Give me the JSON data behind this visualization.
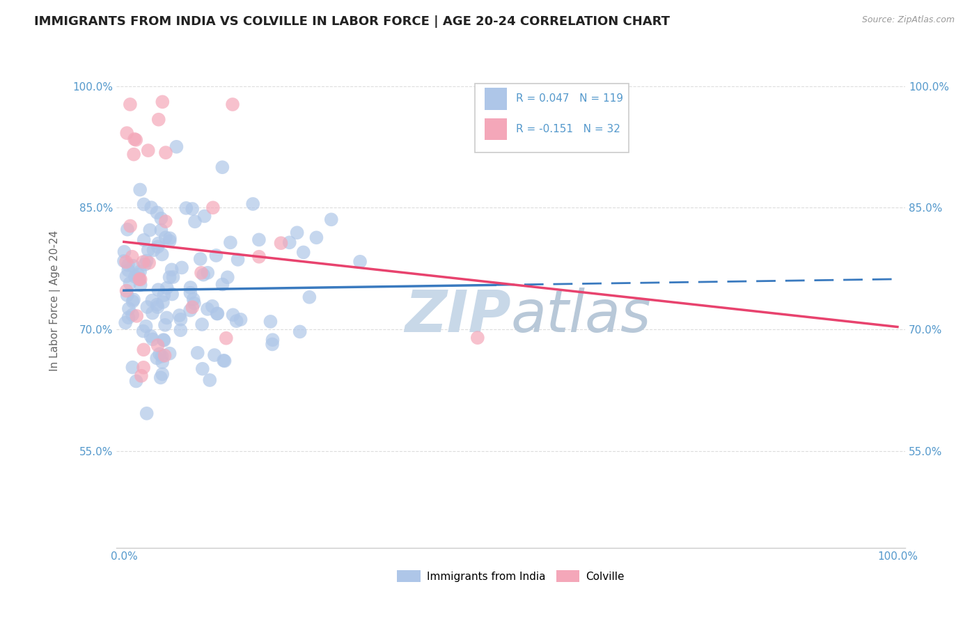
{
  "title": "IMMIGRANTS FROM INDIA VS COLVILLE IN LABOR FORCE | AGE 20-24 CORRELATION CHART",
  "source_text": "Source: ZipAtlas.com",
  "ylabel": "In Labor Force | Age 20-24",
  "xlim": [
    -0.01,
    1.01
  ],
  "ylim": [
    0.43,
    1.04
  ],
  "yticks": [
    0.55,
    0.7,
    0.85,
    1.0
  ],
  "ytick_labels": [
    "55.0%",
    "70.0%",
    "85.0%",
    "100.0%"
  ],
  "xticks": [
    0.0,
    1.0
  ],
  "xtick_labels": [
    "0.0%",
    "100.0%"
  ],
  "legend_R1": "R = 0.047",
  "legend_N1": "N = 119",
  "legend_R2": "R = -0.151",
  "legend_N2": "N = 32",
  "series1_color": "#aec6e8",
  "series2_color": "#f4a7b9",
  "trend1_color": "#3a7abf",
  "trend2_color": "#e8436e",
  "tick_color": "#5599cc",
  "watermark_color": "#c8d8e8",
  "background_color": "#ffffff",
  "grid_color": "#dddddd",
  "title_fontsize": 13,
  "label_fontsize": 11,
  "tick_fontsize": 11,
  "trend1_x_start": 0.0,
  "trend1_x_end": 1.0,
  "trend1_y_start": 0.748,
  "trend1_y_end": 0.762,
  "trend1_solid_end": 0.48,
  "trend2_x_start": 0.0,
  "trend2_x_end": 1.0,
  "trend2_y_start": 0.808,
  "trend2_y_end": 0.703
}
